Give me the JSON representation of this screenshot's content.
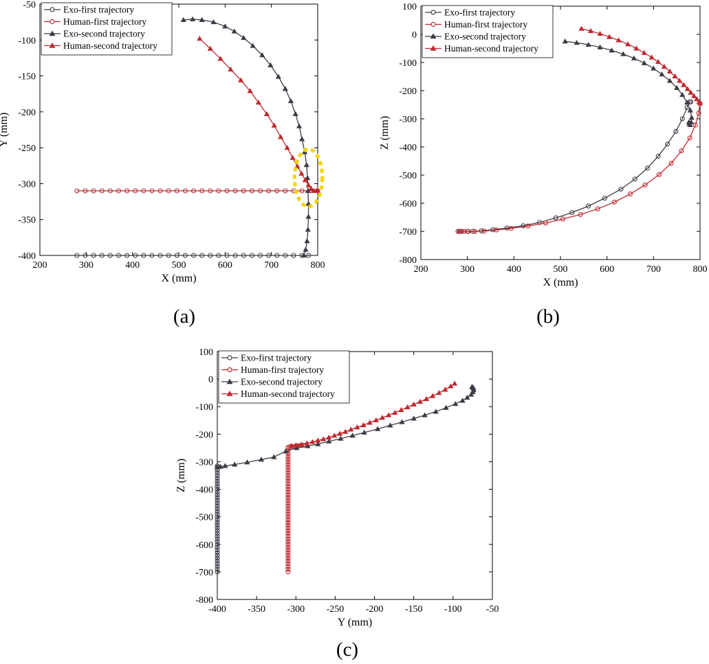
{
  "colors": {
    "exo": "#3f3a45",
    "human": "#c0282f",
    "highlight": "#f5d400"
  },
  "chart_data": [
    {
      "type": "line",
      "panel_label": "(a)",
      "xlabel": "X (mm)",
      "ylabel": "Y (mm)",
      "xlim": [
        200,
        800
      ],
      "ylim": [
        -400,
        -50
      ],
      "xticks": [
        200,
        300,
        400,
        500,
        600,
        700,
        800
      ],
      "yticks": [
        -400,
        -350,
        -300,
        -250,
        -200,
        -150,
        -100,
        -50
      ],
      "y_reversed": true,
      "legend_position": "top-left",
      "highlight_circle": {
        "x": 780,
        "y": -292,
        "rx": 30,
        "ry": 40
      },
      "series": [
        {
          "name": "Exo-first trajectory",
          "color": "exo",
          "marker": "circle",
          "x": [
            280,
            298,
            316,
            334,
            352,
            370,
            388,
            406,
            424,
            442,
            460,
            478,
            496,
            514,
            532,
            550,
            568,
            586,
            604,
            622,
            640,
            658,
            676,
            694,
            712,
            730,
            748,
            766,
            780
          ],
          "y": [
            -400,
            -400,
            -400,
            -400,
            -400,
            -400,
            -400,
            -400,
            -400,
            -400,
            -400,
            -400,
            -400,
            -400,
            -400,
            -400,
            -400,
            -400,
            -400,
            -400,
            -400,
            -400,
            -400,
            -400,
            -400,
            -400,
            -400,
            -400,
            -400
          ]
        },
        {
          "name": "Human-first trajectory",
          "color": "human",
          "marker": "circle",
          "x": [
            280,
            298,
            316,
            334,
            352,
            370,
            388,
            406,
            424,
            442,
            460,
            478,
            496,
            514,
            532,
            550,
            568,
            586,
            604,
            622,
            640,
            658,
            676,
            694,
            712,
            730,
            748,
            766,
            784,
            800
          ],
          "y": [
            -310,
            -310,
            -310,
            -310,
            -310,
            -310,
            -310,
            -310,
            -310,
            -310,
            -310,
            -310,
            -310,
            -310,
            -310,
            -310,
            -310,
            -310,
            -310,
            -310,
            -310,
            -310,
            -310,
            -310,
            -310,
            -310,
            -310,
            -310,
            -310,
            -310
          ]
        },
        {
          "name": "Exo-second trajectory",
          "color": "exo",
          "marker": "triangle",
          "x": [
            510,
            530,
            550,
            575,
            600,
            620,
            640,
            660,
            680,
            698,
            715,
            730,
            742,
            752,
            760,
            766,
            772,
            776,
            778,
            779,
            780,
            780,
            779,
            777,
            774,
            770
          ],
          "y": [
            -72,
            -71,
            -72,
            -75,
            -81,
            -88,
            -97,
            -108,
            -121,
            -135,
            -151,
            -168,
            -185,
            -203,
            -220,
            -238,
            -256,
            -274,
            -292,
            -310,
            -328,
            -346,
            -364,
            -380,
            -392,
            -400
          ]
        },
        {
          "name": "Human-second trajectory",
          "color": "human",
          "marker": "triangle",
          "x": [
            545,
            568,
            590,
            612,
            634,
            654,
            672,
            690,
            706,
            720,
            734,
            746,
            756,
            765,
            773,
            780,
            786,
            792,
            797,
            800
          ],
          "y": [
            -98,
            -112,
            -126,
            -141,
            -156,
            -171,
            -187,
            -203,
            -219,
            -235,
            -250,
            -264,
            -276,
            -286,
            -295,
            -302,
            -307,
            -310,
            -310,
            -310
          ]
        }
      ]
    },
    {
      "type": "line",
      "panel_label": "(b)",
      "xlabel": "X (mm)",
      "ylabel": "Z (mm)",
      "xlim": [
        200,
        800
      ],
      "ylim": [
        -800,
        100
      ],
      "xticks": [
        200,
        300,
        400,
        500,
        600,
        700,
        800
      ],
      "yticks": [
        -800,
        -700,
        -600,
        -500,
        -400,
        -300,
        -200,
        -100,
        0,
        100
      ],
      "legend_position": "top-left",
      "series": [
        {
          "name": "Exo-first trajectory",
          "color": "exo",
          "marker": "circle",
          "x": [
            280,
            283,
            287,
            292,
            300,
            312,
            330,
            355,
            385,
            420,
            455,
            490,
            525,
            560,
            595,
            630,
            660,
            687,
            710,
            730,
            748,
            762,
            772,
            778,
            780
          ],
          "y": [
            -700,
            -700,
            -700,
            -700,
            -700,
            -700,
            -698,
            -694,
            -688,
            -680,
            -668,
            -652,
            -633,
            -610,
            -582,
            -550,
            -514,
            -475,
            -433,
            -390,
            -345,
            -300,
            -260,
            -240,
            -240
          ]
        },
        {
          "name": "Human-first trajectory",
          "color": "human",
          "marker": "circle",
          "x": [
            280,
            285,
            292,
            302,
            316,
            336,
            362,
            394,
            430,
            468,
            505,
            543,
            580,
            616,
            650,
            682,
            712,
            738,
            760,
            778,
            790,
            797,
            800
          ],
          "y": [
            -700,
            -700,
            -700,
            -700,
            -700,
            -699,
            -695,
            -689,
            -681,
            -670,
            -656,
            -640,
            -620,
            -596,
            -567,
            -535,
            -498,
            -458,
            -414,
            -368,
            -322,
            -280,
            -245
          ]
        },
        {
          "name": "Exo-second trajectory",
          "color": "exo",
          "marker": "triangle",
          "x": [
            510,
            535,
            560,
            585,
            610,
            635,
            658,
            680,
            700,
            718,
            735,
            750,
            762,
            772,
            779,
            782,
            781,
            779,
            777,
            776
          ],
          "y": [
            -25,
            -30,
            -37,
            -46,
            -57,
            -70,
            -85,
            -102,
            -121,
            -142,
            -165,
            -190,
            -215,
            -242,
            -270,
            -296,
            -312,
            -322,
            -318,
            -312
          ]
        },
        {
          "name": "Human-second trajectory",
          "color": "human",
          "marker": "triangle",
          "x": [
            545,
            565,
            585,
            605,
            625,
            645,
            663,
            680,
            696,
            710,
            723,
            735,
            746,
            756,
            765,
            773,
            780,
            787,
            793,
            798,
            800
          ],
          "y": [
            20,
            12,
            2,
            -9,
            -21,
            -35,
            -50,
            -66,
            -82,
            -98,
            -115,
            -132,
            -149,
            -165,
            -180,
            -194,
            -207,
            -219,
            -230,
            -240,
            -245
          ]
        }
      ]
    },
    {
      "type": "line",
      "panel_label": "(c)",
      "xlabel": "Y (mm)",
      "ylabel": "Z (mm)",
      "xlim": [
        -400,
        -50
      ],
      "ylim": [
        -800,
        100
      ],
      "xticks": [
        -400,
        -350,
        -300,
        -250,
        -200,
        -150,
        -100,
        -50
      ],
      "yticks": [
        -800,
        -700,
        -600,
        -500,
        -400,
        -300,
        -200,
        -100,
        0,
        100
      ],
      "legend_position": "top-left",
      "series": [
        {
          "name": "Exo-first trajectory",
          "color": "exo",
          "marker": "circle",
          "x": [
            -400,
            -400,
            -400,
            -400,
            -400,
            -400,
            -400,
            -400,
            -400,
            -400,
            -400,
            -400,
            -400,
            -400,
            -400,
            -400,
            -400,
            -400,
            -400,
            -400,
            -400,
            -400,
            -400,
            -400,
            -400,
            -400,
            -400,
            -400,
            -400,
            -400,
            -400,
            -400,
            -400,
            -400,
            -400,
            -400,
            -400,
            -400,
            -400,
            -400
          ],
          "y": [
            -700,
            -690,
            -680,
            -670,
            -660,
            -650,
            -640,
            -630,
            -620,
            -610,
            -600,
            -590,
            -580,
            -570,
            -560,
            -550,
            -540,
            -530,
            -520,
            -510,
            -500,
            -490,
            -480,
            -470,
            -460,
            -450,
            -440,
            -430,
            -420,
            -410,
            -400,
            -390,
            -380,
            -370,
            -360,
            -350,
            -340,
            -330,
            -320,
            -315
          ]
        },
        {
          "name": "Human-first trajectory",
          "color": "human",
          "marker": "circle",
          "x": [
            -310,
            -310,
            -310,
            -310,
            -310,
            -310,
            -310,
            -310,
            -310,
            -310,
            -310,
            -310,
            -310,
            -310,
            -310,
            -310,
            -310,
            -310,
            -310,
            -310,
            -310,
            -310,
            -310,
            -310,
            -310,
            -310,
            -310,
            -310,
            -310,
            -310,
            -310,
            -310,
            -310,
            -310,
            -310,
            -310,
            -310,
            -310,
            -310,
            -310,
            -310,
            -310,
            -310,
            -310,
            -310,
            -310,
            -308,
            -305,
            -302,
            -299,
            -296,
            -293,
            -290
          ],
          "y": [
            -700,
            -690,
            -680,
            -670,
            -660,
            -650,
            -640,
            -630,
            -620,
            -610,
            -600,
            -590,
            -580,
            -570,
            -560,
            -550,
            -540,
            -530,
            -520,
            -510,
            -500,
            -490,
            -480,
            -470,
            -460,
            -450,
            -440,
            -430,
            -420,
            -410,
            -400,
            -390,
            -380,
            -370,
            -360,
            -350,
            -340,
            -330,
            -320,
            -310,
            -300,
            -290,
            -280,
            -270,
            -260,
            -248,
            -246,
            -245,
            -244,
            -243,
            -242,
            -241,
            -240
          ]
        },
        {
          "name": "Exo-second trajectory",
          "color": "exo",
          "marker": "triangle",
          "x": [
            -400,
            -396,
            -390,
            -378,
            -362,
            -344,
            -328,
            -313,
            -299,
            -285,
            -272,
            -258,
            -243,
            -228,
            -213,
            -196,
            -180,
            -165,
            -150,
            -136,
            -122,
            -109,
            -97,
            -88,
            -82,
            -77,
            -75,
            -74,
            -74,
            -75,
            -76
          ],
          "y": [
            -320,
            -318,
            -315,
            -310,
            -302,
            -292,
            -283,
            -262,
            -250,
            -243,
            -236,
            -226,
            -216,
            -205,
            -194,
            -181,
            -168,
            -156,
            -143,
            -131,
            -118,
            -104,
            -90,
            -78,
            -67,
            -56,
            -47,
            -40,
            -33,
            -30,
            -28
          ]
        },
        {
          "name": "Human-second trajectory",
          "color": "human",
          "marker": "triangle",
          "x": [
            -306,
            -300,
            -293,
            -286,
            -279,
            -272,
            -265,
            -258,
            -251,
            -244,
            -237,
            -230,
            -222,
            -214,
            -206,
            -198,
            -190,
            -182,
            -174,
            -166,
            -158,
            -150,
            -142,
            -134,
            -126,
            -118,
            -110,
            -103,
            -98
          ],
          "y": [
            -242,
            -240,
            -237,
            -233,
            -228,
            -223,
            -218,
            -212,
            -205,
            -198,
            -191,
            -183,
            -175,
            -167,
            -158,
            -149,
            -140,
            -131,
            -122,
            -112,
            -102,
            -92,
            -82,
            -72,
            -61,
            -50,
            -38,
            -26,
            -16
          ]
        }
      ]
    }
  ]
}
